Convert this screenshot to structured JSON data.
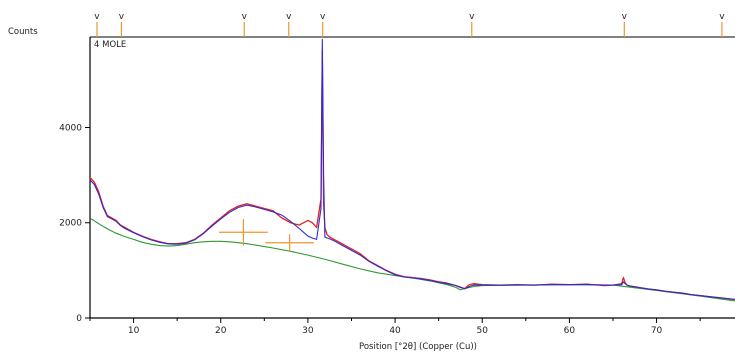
{
  "chart_data": {
    "type": "line",
    "title": "",
    "sample_label": "4 MOLE",
    "ylabel": "Counts",
    "xlabel": "Position [°2θ] (Copper (Cu))",
    "xlim": [
      5,
      79
    ],
    "ylim": [
      0,
      5900
    ],
    "x_ticks": [
      10,
      20,
      30,
      40,
      50,
      60,
      70
    ],
    "y_ticks": [
      0,
      2000,
      4000
    ],
    "grid": false,
    "legend": "none",
    "series": [
      {
        "role": "observed",
        "color": "#e8201e",
        "x": [
          5,
          5.5,
          6,
          6.5,
          7,
          7.5,
          8,
          8.5,
          9,
          10,
          11,
          12,
          13,
          14,
          15,
          16,
          17,
          18,
          19,
          20,
          21,
          22,
          23,
          24,
          25,
          26,
          27,
          28,
          29,
          30,
          30.5,
          31,
          31.5,
          31.65,
          31.8,
          31.95,
          32.2,
          32.5,
          33,
          34,
          35,
          36,
          37,
          38,
          39,
          40,
          41,
          42,
          43,
          44,
          45,
          46,
          47,
          47.5,
          48,
          48.5,
          49,
          50,
          52,
          54,
          56,
          58,
          60,
          62,
          64,
          65,
          66,
          66.2,
          66.4,
          66.6,
          67,
          68,
          69,
          70,
          71,
          72,
          73,
          74,
          75,
          76,
          77,
          78,
          79
        ],
        "y": [
          2950,
          2850,
          2650,
          2350,
          2150,
          2100,
          2050,
          1950,
          1900,
          1800,
          1720,
          1650,
          1600,
          1560,
          1560,
          1580,
          1650,
          1780,
          1950,
          2100,
          2250,
          2350,
          2400,
          2350,
          2300,
          2250,
          2100,
          2000,
          1950,
          2050,
          2000,
          1900,
          2500,
          5600,
          2400,
          1900,
          1750,
          1700,
          1650,
          1550,
          1450,
          1350,
          1200,
          1100,
          1000,
          920,
          870,
          850,
          830,
          800,
          760,
          730,
          680,
          640,
          620,
          700,
          720,
          700,
          690,
          700,
          690,
          710,
          700,
          710,
          680,
          690,
          720,
          850,
          740,
          690,
          670,
          640,
          610,
          590,
          560,
          540,
          520,
          490,
          470,
          450,
          430,
          410,
          390
        ]
      },
      {
        "role": "fitted",
        "color": "#2b2bd6",
        "x": [
          5,
          5.5,
          6,
          6.5,
          7,
          7.5,
          8,
          8.5,
          9,
          10,
          11,
          12,
          13,
          14,
          15,
          16,
          17,
          18,
          19,
          20,
          21,
          22,
          23,
          24,
          25,
          26,
          27,
          28,
          29,
          30,
          30.5,
          31,
          31.5,
          31.65,
          31.8,
          31.95,
          32.2,
          32.5,
          33,
          34,
          35,
          36,
          37,
          38,
          39,
          40,
          41,
          42,
          43,
          44,
          45,
          46,
          47,
          47.5,
          48,
          48.5,
          49,
          50,
          52,
          54,
          56,
          58,
          60,
          62,
          64,
          65,
          66,
          66.2,
          66.4,
          66.6,
          67,
          68,
          69,
          70,
          71,
          72,
          73,
          74,
          75,
          76,
          77,
          78,
          79
        ],
        "y": [
          2900,
          2800,
          2600,
          2320,
          2130,
          2080,
          2030,
          1940,
          1880,
          1790,
          1710,
          1640,
          1590,
          1555,
          1550,
          1570,
          1640,
          1770,
          1930,
          2080,
          2220,
          2320,
          2370,
          2330,
          2280,
          2230,
          2160,
          2030,
          1880,
          1720,
          1680,
          1650,
          2300,
          5850,
          3000,
          1700,
          1680,
          1660,
          1620,
          1520,
          1420,
          1320,
          1190,
          1090,
          990,
          910,
          860,
          840,
          820,
          790,
          750,
          720,
          680,
          650,
          610,
          660,
          690,
          690,
          690,
          695,
          690,
          700,
          700,
          705,
          690,
          690,
          700,
          760,
          720,
          690,
          670,
          640,
          610,
          590,
          560,
          540,
          520,
          490,
          470,
          450,
          430,
          410,
          390
        ]
      },
      {
        "role": "background",
        "color": "#2e9a2e",
        "x": [
          5,
          6,
          7,
          8,
          9,
          10,
          11,
          12,
          13,
          14,
          15,
          16,
          17,
          18,
          19,
          20,
          21,
          22,
          23,
          24,
          25,
          26,
          28,
          30,
          32,
          34,
          36,
          38,
          40,
          42,
          44,
          46,
          47,
          47.5,
          48,
          49,
          50,
          55,
          60,
          65,
          70,
          75,
          79
        ],
        "y": [
          2100,
          1980,
          1870,
          1780,
          1710,
          1650,
          1590,
          1550,
          1520,
          1510,
          1520,
          1550,
          1580,
          1600,
          1610,
          1610,
          1600,
          1580,
          1560,
          1530,
          1500,
          1470,
          1400,
          1320,
          1230,
          1130,
          1030,
          950,
          890,
          840,
          780,
          700,
          640,
          590,
          620,
          660,
          680,
          690,
          700,
          690,
          580,
          460,
          360
        ]
      }
    ],
    "peak_markers": {
      "symbol": "v",
      "positions": [
        5.8,
        8.6,
        22.7,
        27.8,
        31.7,
        48.8,
        66.3,
        77.5
      ]
    },
    "profile_crosses": [
      {
        "x": 22.6,
        "y": 1800,
        "x_half_width": 2.8,
        "y_half_height": 280
      },
      {
        "x": 27.9,
        "y": 1580,
        "x_half_width": 2.8,
        "y_half_height": 180
      }
    ],
    "colors": {
      "observed": "#e8201e",
      "fitted": "#2b2bd6",
      "background": "#2e9a2e",
      "markers": "#f0962c",
      "axis": "#000000"
    }
  }
}
